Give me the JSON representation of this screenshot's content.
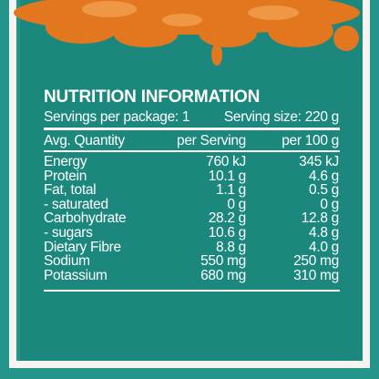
{
  "header": {
    "title": "NUTRITION INFORMATION",
    "servings_per_package": "Servings per package: 1",
    "serving_size": "Serving size: 220 g"
  },
  "table": {
    "columns": [
      "Avg. Quantity",
      "per Serving",
      "per 100 g"
    ],
    "rows": [
      [
        "Energy",
        "760 kJ",
        "345 kJ"
      ],
      [
        "Protein",
        "10.1 g",
        "4.6 g"
      ],
      [
        "Fat, total",
        "1.1 g",
        "0.5 g"
      ],
      [
        "- saturated",
        "0 g",
        "0 g"
      ],
      [
        "Carbohydrate",
        "28.2 g",
        "12.8 g"
      ],
      [
        "- sugars",
        "10.6 g",
        "4.8 g"
      ],
      [
        "Dietary Fibre",
        "8.8 g",
        "4.0 g"
      ],
      [
        "Sodium",
        "550 mg",
        "250 mg"
      ],
      [
        "Potassium",
        "680 mg",
        "310 mg"
      ]
    ]
  }
}
